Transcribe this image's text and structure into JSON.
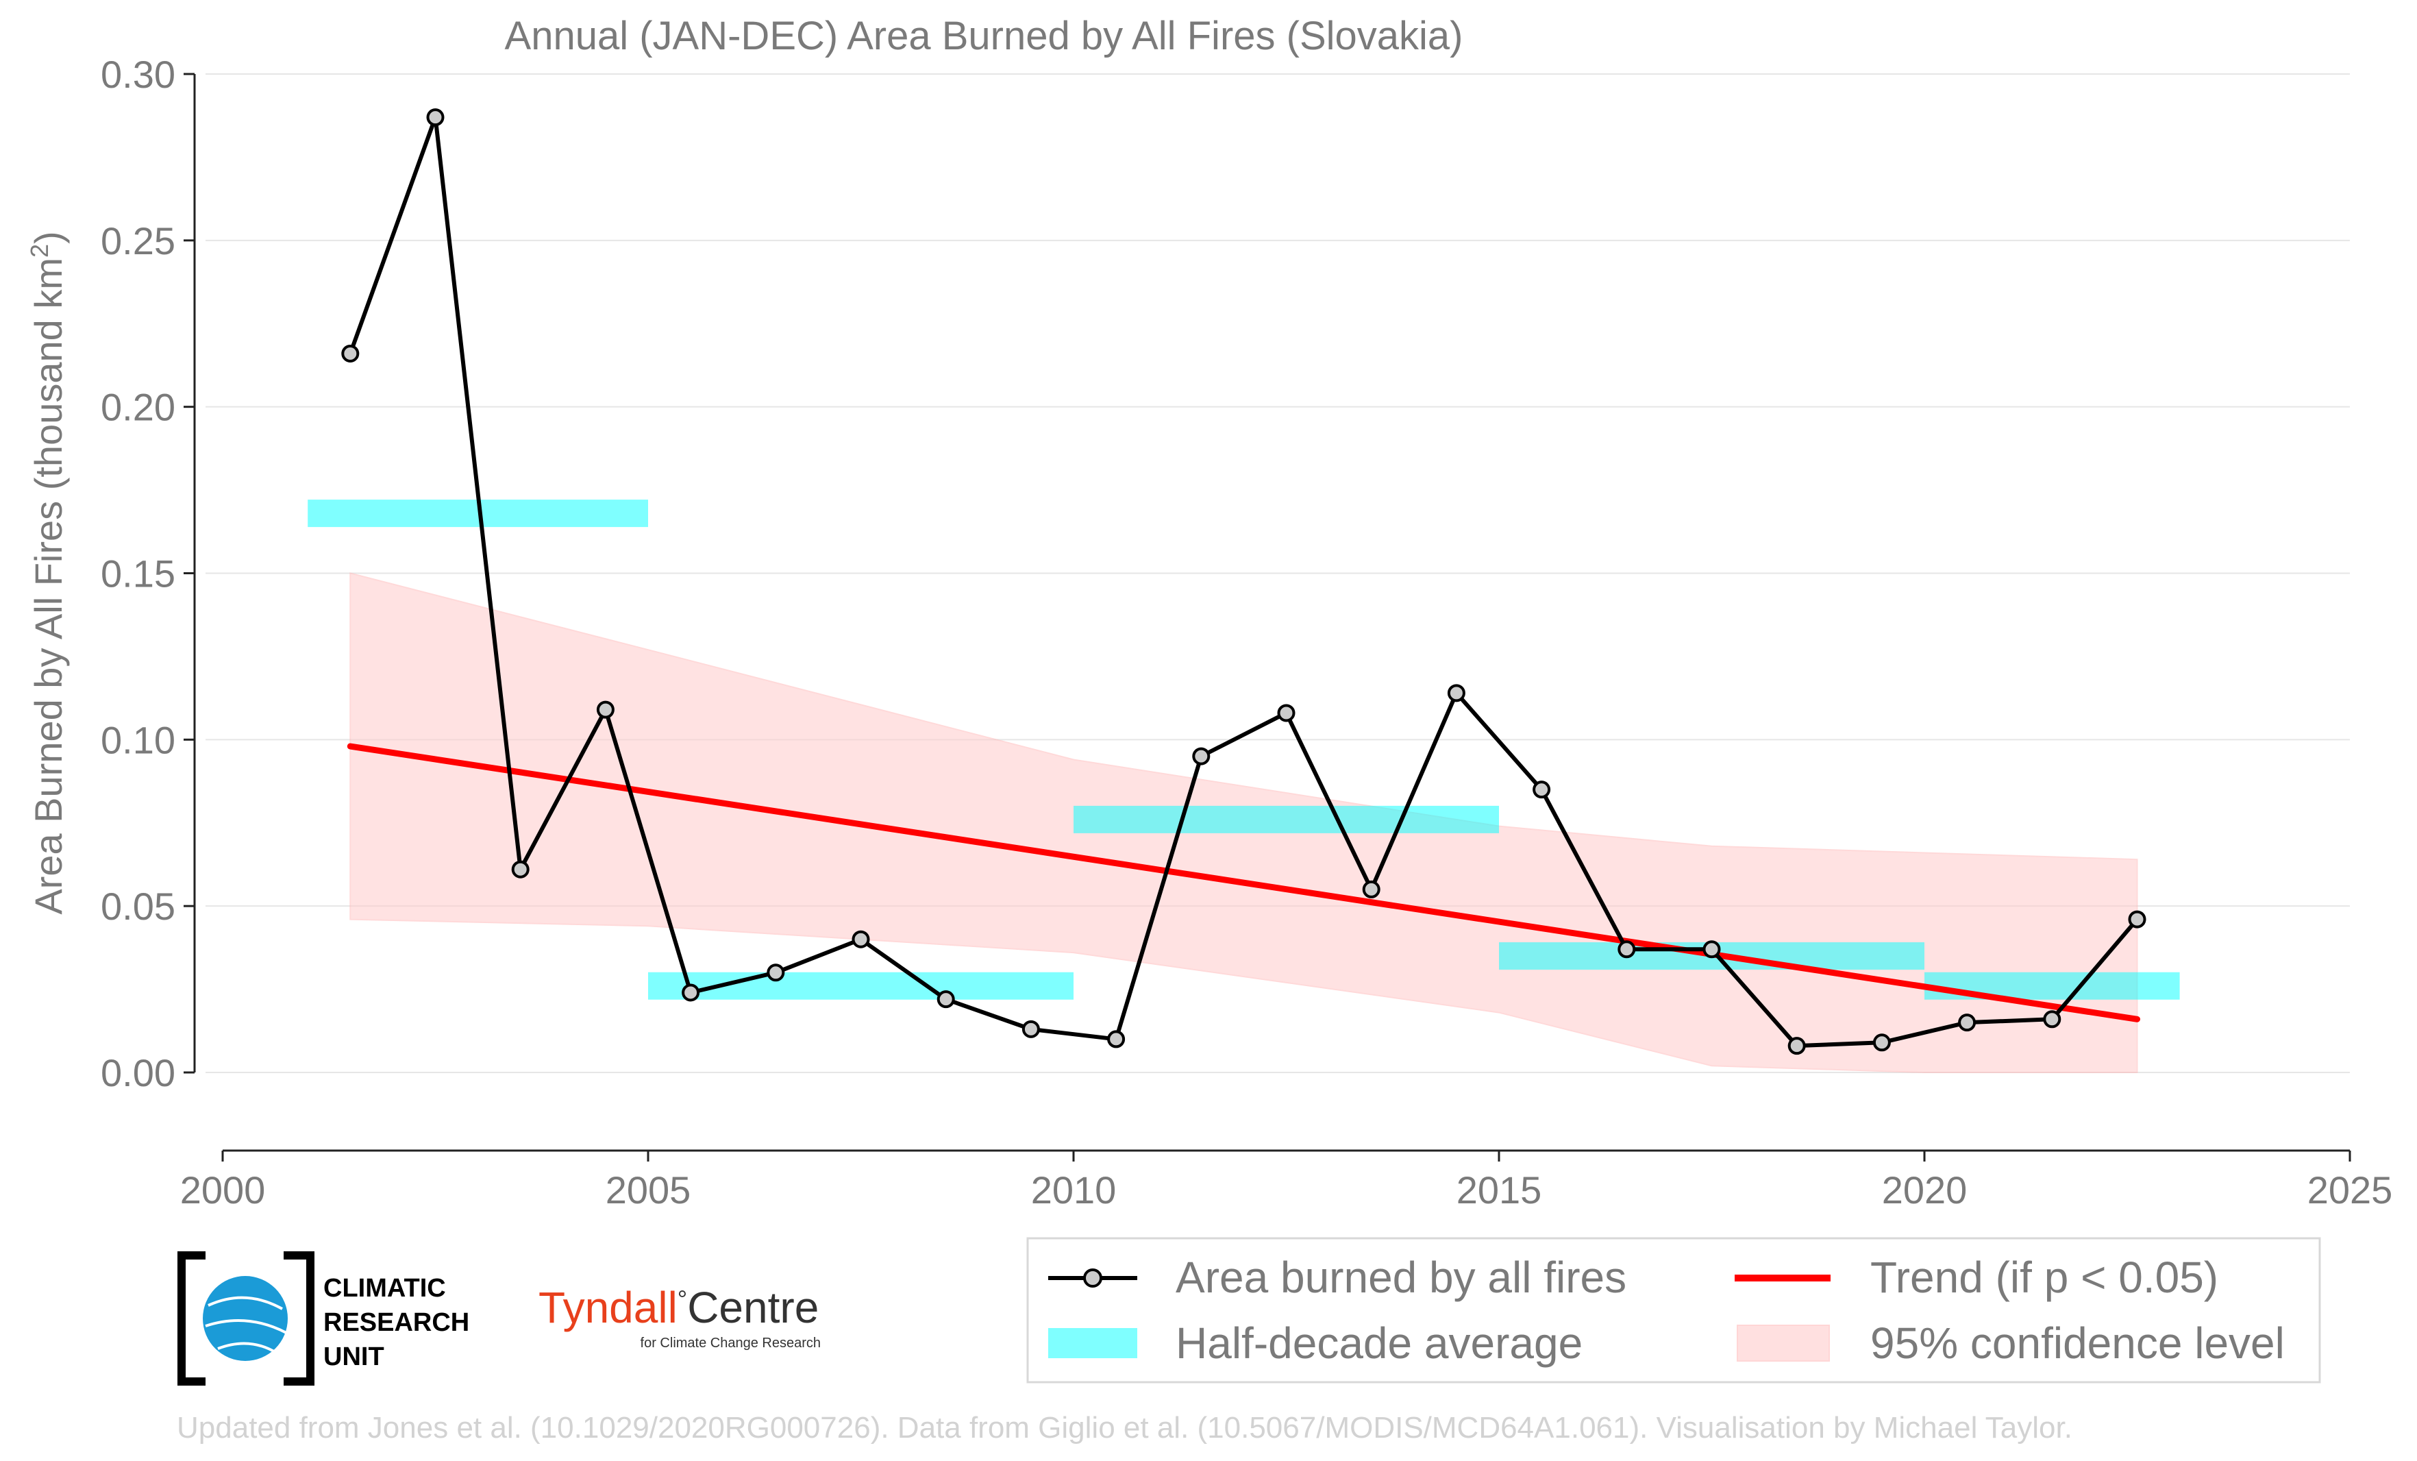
{
  "chart_data": {
    "type": "line",
    "title": "Annual (JAN-DEC) Area Burned by All Fires (Slovakia)",
    "ylabel": "Area Burned by All Fires (thousand km",
    "ylabel_sup": "2",
    "ylabel_end": ")",
    "xlabel": "",
    "xlim": [
      2000,
      2025
    ],
    "ylim": [
      0.0,
      0.3
    ],
    "xticks": [
      2000,
      2005,
      2010,
      2015,
      2020,
      2025
    ],
    "yticks": [
      0.0,
      0.05,
      0.1,
      0.15,
      0.2,
      0.25,
      0.3
    ],
    "grid": "horizontal",
    "legend_position": "bottom-right",
    "series": [
      {
        "name": "Area burned by all fires",
        "x": [
          2001.5,
          2002.5,
          2003.5,
          2004.5,
          2005.5,
          2006.5,
          2007.5,
          2008.5,
          2009.5,
          2010.5,
          2011.5,
          2012.5,
          2013.5,
          2014.5,
          2015.5,
          2016.5,
          2017.5,
          2018.5,
          2019.5,
          2020.5,
          2021.5,
          2022.5
        ],
        "y": [
          0.216,
          0.287,
          0.061,
          0.109,
          0.024,
          0.03,
          0.04,
          0.022,
          0.013,
          0.01,
          0.095,
          0.108,
          0.055,
          0.114,
          0.085,
          0.037,
          0.037,
          0.008,
          0.009,
          0.015,
          0.016,
          0.046
        ]
      },
      {
        "name": "Half-decade average",
        "segments": [
          {
            "x0": 2001,
            "x1": 2005,
            "y": 0.168
          },
          {
            "x0": 2005,
            "x1": 2010,
            "y": 0.026
          },
          {
            "x0": 2010,
            "x1": 2015,
            "y": 0.076
          },
          {
            "x0": 2015,
            "x1": 2020,
            "y": 0.035
          },
          {
            "x0": 2020,
            "x1": 2023,
            "y": 0.026
          }
        ]
      },
      {
        "name": "Trend (if p < 0.05)",
        "x": [
          2001.5,
          2022.5
        ],
        "y": [
          0.098,
          0.016
        ]
      },
      {
        "name": "95% confidence level",
        "x": [
          2001.5,
          2005,
          2010,
          2015,
          2017.5,
          2020,
          2022.5
        ],
        "upper": [
          0.15,
          0.127,
          0.094,
          0.074,
          0.068,
          0.066,
          0.064
        ],
        "lower": [
          0.046,
          0.044,
          0.036,
          0.018,
          0.002,
          0.0,
          0.0
        ]
      }
    ],
    "colors": {
      "line": "#000000",
      "marker_fill": "#cccccc",
      "half_decade": "#00ffff",
      "trend": "#ff0000",
      "confidence": "#ffcccc",
      "text": "#7a7a7a",
      "grid": "#e6e6e6"
    }
  },
  "legend": {
    "items": [
      "Area burned by all fires",
      "Trend (if p < 0.05)",
      "Half-decade average",
      "95% confidence level"
    ]
  },
  "logos": {
    "cru_lines": [
      "CLIMATIC",
      "RESEARCH",
      "UNIT"
    ],
    "tyndall_main": "Tyndall",
    "tyndall_centre": "Centre",
    "tyndall_sub": "for Climate Change Research"
  },
  "credit": "Updated from Jones et al. (10.1029/2020RG000726). Data from Giglio et al. (10.5067/MODIS/MCD64A1.061). Visualisation by Michael Taylor."
}
